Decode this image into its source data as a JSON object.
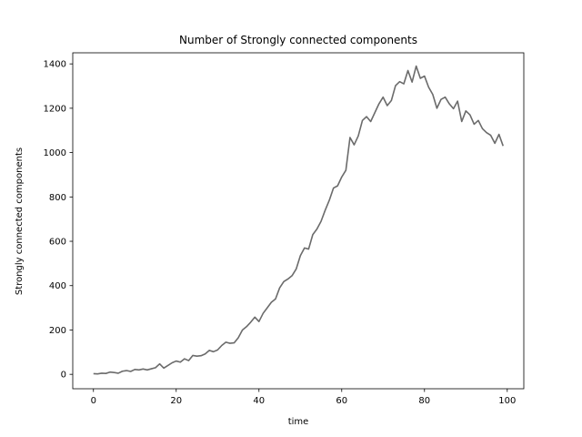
{
  "chart_data": {
    "type": "line",
    "title": "Number of Strongly connected components",
    "xlabel": "time",
    "ylabel": "Strongly connected components",
    "xlim": [
      -5,
      104
    ],
    "ylim": [
      -65,
      1450
    ],
    "xticks": [
      0,
      20,
      40,
      60,
      80,
      100
    ],
    "yticks": [
      0,
      200,
      400,
      600,
      800,
      1000,
      1200,
      1400
    ],
    "grid": false,
    "legend": "none",
    "series": [
      {
        "color": "#6b6b6b",
        "x": [
          0,
          1,
          2,
          3,
          4,
          5,
          6,
          7,
          8,
          9,
          10,
          11,
          12,
          13,
          14,
          15,
          16,
          17,
          18,
          19,
          20,
          21,
          22,
          23,
          24,
          25,
          26,
          27,
          28,
          29,
          30,
          31,
          32,
          33,
          34,
          35,
          36,
          37,
          38,
          39,
          40,
          41,
          42,
          43,
          44,
          45,
          46,
          47,
          48,
          49,
          50,
          51,
          52,
          53,
          54,
          55,
          56,
          57,
          58,
          59,
          60,
          61,
          62,
          63,
          64,
          65,
          66,
          67,
          68,
          69,
          70,
          71,
          72,
          73,
          74,
          75,
          76,
          77,
          78,
          79,
          80,
          81,
          82,
          83,
          84,
          85,
          86,
          87,
          88,
          89,
          90,
          91,
          92,
          93,
          94,
          95,
          96,
          97,
          98,
          99
        ],
        "y": [
          3,
          2,
          5,
          4,
          10,
          8,
          5,
          14,
          17,
          13,
          22,
          20,
          24,
          20,
          25,
          30,
          47,
          28,
          40,
          52,
          60,
          55,
          70,
          62,
          85,
          82,
          84,
          92,
          108,
          102,
          110,
          130,
          145,
          140,
          142,
          165,
          200,
          215,
          235,
          258,
          238,
          275,
          300,
          325,
          340,
          390,
          418,
          430,
          445,
          475,
          535,
          570,
          565,
          630,
          655,
          690,
          740,
          785,
          840,
          850,
          890,
          920,
          1068,
          1035,
          1075,
          1145,
          1162,
          1140,
          1180,
          1220,
          1250,
          1212,
          1235,
          1302,
          1320,
          1310,
          1370,
          1318,
          1390,
          1335,
          1345,
          1295,
          1262,
          1200,
          1240,
          1250,
          1220,
          1198,
          1232,
          1140,
          1188,
          1170,
          1128,
          1145,
          1108,
          1090,
          1078,
          1042,
          1082,
          1030
        ]
      }
    ]
  }
}
